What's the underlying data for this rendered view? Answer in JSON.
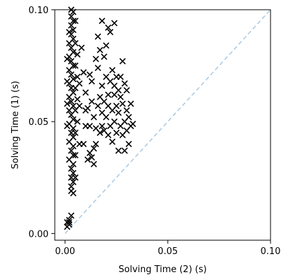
{
  "chart_data": {
    "type": "scatter",
    "xlabel": "Solving Time (2) (s)",
    "ylabel": "Solving Time (1) (s)",
    "xlim": [
      -0.005,
      0.1
    ],
    "ylim": [
      -0.003,
      0.1
    ],
    "xticks": [
      {
        "value": 0.0,
        "label": "0.00"
      },
      {
        "value": 0.05,
        "label": "0.05"
      },
      {
        "value": 0.1,
        "label": "0.10"
      }
    ],
    "yticks": [
      {
        "value": 0.0,
        "label": "0.00"
      },
      {
        "value": 0.05,
        "label": "0.05"
      },
      {
        "value": 0.1,
        "label": "0.10"
      }
    ],
    "marker": "x",
    "marker_color": "#000000",
    "diagonal": {
      "from": [
        0.0,
        0.0
      ],
      "to": [
        0.1,
        0.1
      ],
      "style": "dashed",
      "color": "#a9c9e3"
    },
    "grid": false,
    "series": [
      {
        "points": [
          [
            0.001,
            0.003
          ],
          [
            0.002,
            0.004
          ],
          [
            0.001,
            0.005
          ],
          [
            0.002,
            0.005
          ],
          [
            0.003,
            0.008
          ],
          [
            0.002,
            0.006
          ],
          [
            0.003,
            0.019
          ],
          [
            0.003,
            0.021
          ],
          [
            0.004,
            0.023
          ],
          [
            0.003,
            0.025
          ],
          [
            0.004,
            0.027
          ],
          [
            0.003,
            0.029
          ],
          [
            0.004,
            0.031
          ],
          [
            0.002,
            0.033
          ],
          [
            0.004,
            0.035
          ],
          [
            0.003,
            0.037
          ],
          [
            0.004,
            0.039
          ],
          [
            0.002,
            0.041
          ],
          [
            0.004,
            0.043
          ],
          [
            0.003,
            0.045
          ],
          [
            0.004,
            0.047
          ],
          [
            0.002,
            0.049
          ],
          [
            0.004,
            0.051
          ],
          [
            0.003,
            0.053
          ],
          [
            0.002,
            0.055
          ],
          [
            0.004,
            0.057
          ],
          [
            0.003,
            0.059
          ],
          [
            0.002,
            0.061
          ],
          [
            0.004,
            0.063
          ],
          [
            0.003,
            0.065
          ],
          [
            0.002,
            0.067
          ],
          [
            0.004,
            0.069
          ],
          [
            0.003,
            0.071
          ],
          [
            0.002,
            0.073
          ],
          [
            0.004,
            0.075
          ],
          [
            0.003,
            0.077
          ],
          [
            0.002,
            0.079
          ],
          [
            0.004,
            0.081
          ],
          [
            0.003,
            0.083
          ],
          [
            0.002,
            0.085
          ],
          [
            0.004,
            0.087
          ],
          [
            0.003,
            0.089
          ],
          [
            0.004,
            0.091
          ],
          [
            0.003,
            0.093
          ],
          [
            0.004,
            0.095
          ],
          [
            0.003,
            0.097
          ],
          [
            0.004,
            0.099
          ],
          [
            0.003,
            0.1
          ],
          [
            0.005,
            0.045
          ],
          [
            0.005,
            0.055
          ],
          [
            0.005,
            0.065
          ],
          [
            0.005,
            0.075
          ],
          [
            0.005,
            0.085
          ],
          [
            0.005,
            0.095
          ],
          [
            0.001,
            0.048
          ],
          [
            0.001,
            0.058
          ],
          [
            0.001,
            0.068
          ],
          [
            0.001,
            0.078
          ],
          [
            0.002,
            0.09
          ],
          [
            0.005,
            0.035
          ],
          [
            0.005,
            0.025
          ],
          [
            0.004,
            0.018
          ],
          [
            0.006,
            0.05
          ],
          [
            0.006,
            0.06
          ],
          [
            0.006,
            0.07
          ],
          [
            0.006,
            0.08
          ],
          [
            0.008,
            0.083
          ],
          [
            0.007,
            0.067
          ],
          [
            0.007,
            0.057
          ],
          [
            0.007,
            0.04
          ],
          [
            0.009,
            0.04
          ],
          [
            0.01,
            0.063
          ],
          [
            0.01,
            0.048
          ],
          [
            0.011,
            0.033
          ],
          [
            0.011,
            0.056
          ],
          [
            0.012,
            0.036
          ],
          [
            0.012,
            0.048
          ],
          [
            0.012,
            0.071
          ],
          [
            0.013,
            0.034
          ],
          [
            0.013,
            0.059
          ],
          [
            0.014,
            0.031
          ],
          [
            0.014,
            0.038
          ],
          [
            0.014,
            0.052
          ],
          [
            0.015,
            0.04
          ],
          [
            0.015,
            0.078
          ],
          [
            0.015,
            0.047
          ],
          [
            0.016,
            0.057
          ],
          [
            0.016,
            0.074
          ],
          [
            0.017,
            0.045
          ],
          [
            0.017,
            0.061
          ],
          [
            0.017,
            0.082
          ],
          [
            0.018,
            0.048
          ],
          [
            0.018,
            0.066
          ],
          [
            0.018,
            0.054
          ],
          [
            0.019,
            0.079
          ],
          [
            0.019,
            0.059
          ],
          [
            0.019,
            0.046
          ],
          [
            0.02,
            0.07
          ],
          [
            0.02,
            0.052
          ],
          [
            0.02,
            0.084
          ],
          [
            0.021,
            0.044
          ],
          [
            0.021,
            0.062
          ],
          [
            0.021,
            0.057
          ],
          [
            0.022,
            0.068
          ],
          [
            0.022,
            0.048
          ],
          [
            0.022,
            0.09
          ],
          [
            0.023,
            0.073
          ],
          [
            0.023,
            0.055
          ],
          [
            0.023,
            0.041
          ],
          [
            0.024,
            0.062
          ],
          [
            0.024,
            0.066
          ],
          [
            0.024,
            0.05
          ],
          [
            0.025,
            0.045
          ],
          [
            0.025,
            0.07
          ],
          [
            0.025,
            0.057
          ],
          [
            0.026,
            0.064
          ],
          [
            0.026,
            0.037
          ],
          [
            0.026,
            0.054
          ],
          [
            0.027,
            0.048
          ],
          [
            0.027,
            0.07
          ],
          [
            0.027,
            0.061
          ],
          [
            0.028,
            0.077
          ],
          [
            0.028,
            0.044
          ],
          [
            0.028,
            0.058
          ],
          [
            0.029,
            0.067
          ],
          [
            0.029,
            0.05
          ],
          [
            0.029,
            0.037
          ],
          [
            0.03,
            0.055
          ],
          [
            0.03,
            0.064
          ],
          [
            0.03,
            0.046
          ],
          [
            0.031,
            0.052
          ],
          [
            0.031,
            0.04
          ],
          [
            0.032,
            0.048
          ],
          [
            0.032,
            0.058
          ],
          [
            0.033,
            0.049
          ],
          [
            0.018,
            0.095
          ],
          [
            0.021,
            0.092
          ],
          [
            0.024,
            0.094
          ],
          [
            0.016,
            0.088
          ],
          [
            0.013,
            0.068
          ],
          [
            0.01,
            0.055
          ],
          [
            0.009,
            0.072
          ]
        ]
      }
    ]
  }
}
